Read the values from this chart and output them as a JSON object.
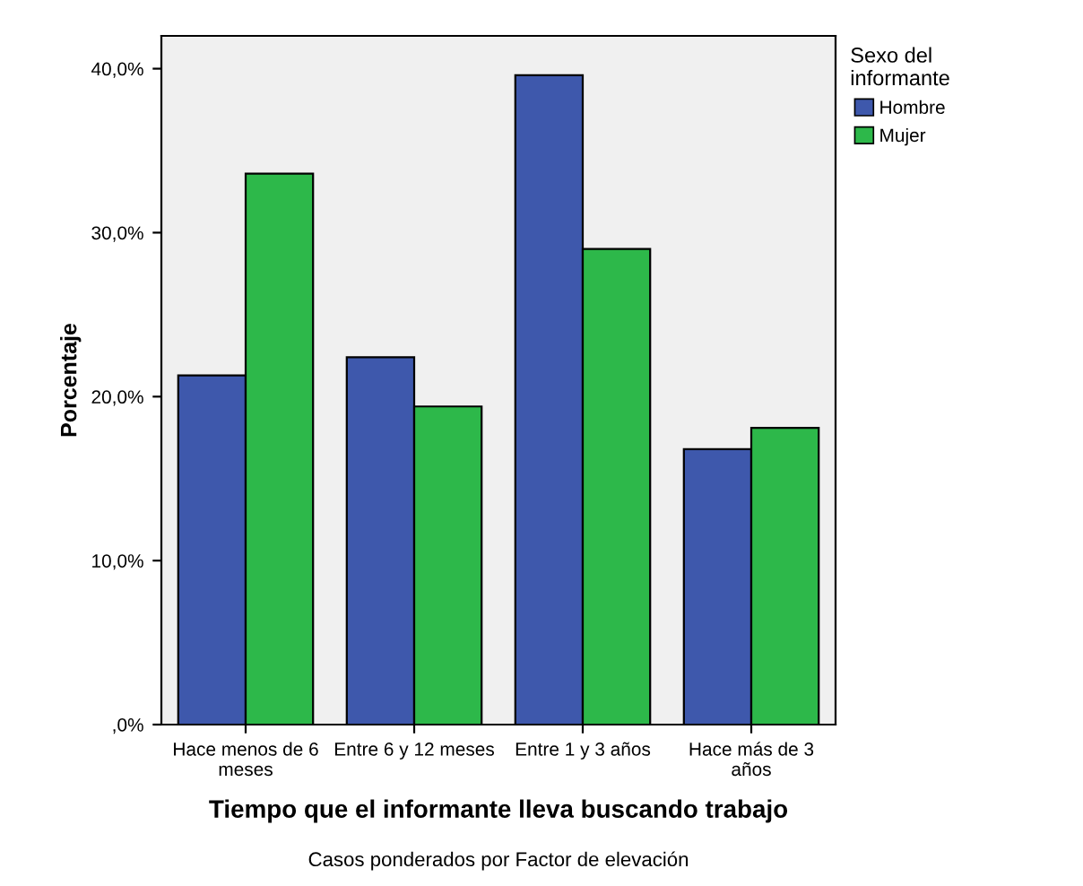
{
  "chart_data": {
    "type": "bar",
    "xlabel": "Tiempo que el informante lleva buscando trabajo",
    "ylabel": "Porcentaje",
    "legend_title": "Sexo del\ninformante",
    "annotations": [
      "Casos ponderados por Factor de elevación"
    ],
    "categories": [
      "Hace menos de 6\nmeses",
      "Entre 6 y 12 meses",
      "Entre 1 y 3 años",
      "Hace más de 3\naños"
    ],
    "series": [
      {
        "name": "Hombre",
        "color": "#3e58ac",
        "values": [
          21.3,
          22.4,
          39.6,
          16.8
        ]
      },
      {
        "name": "Mujer",
        "color": "#2db84a",
        "values": [
          33.6,
          19.4,
          29.0,
          18.1
        ]
      }
    ],
    "ylim": [
      0,
      42
    ],
    "yticks": [
      {
        "value": 0,
        "label": ",0%"
      },
      {
        "value": 10,
        "label": "10,0%"
      },
      {
        "value": 20,
        "label": "20,0%"
      },
      {
        "value": 30,
        "label": "30,0%"
      },
      {
        "value": 40,
        "label": "40,0%"
      }
    ],
    "grid": false,
    "legend": "top right"
  }
}
